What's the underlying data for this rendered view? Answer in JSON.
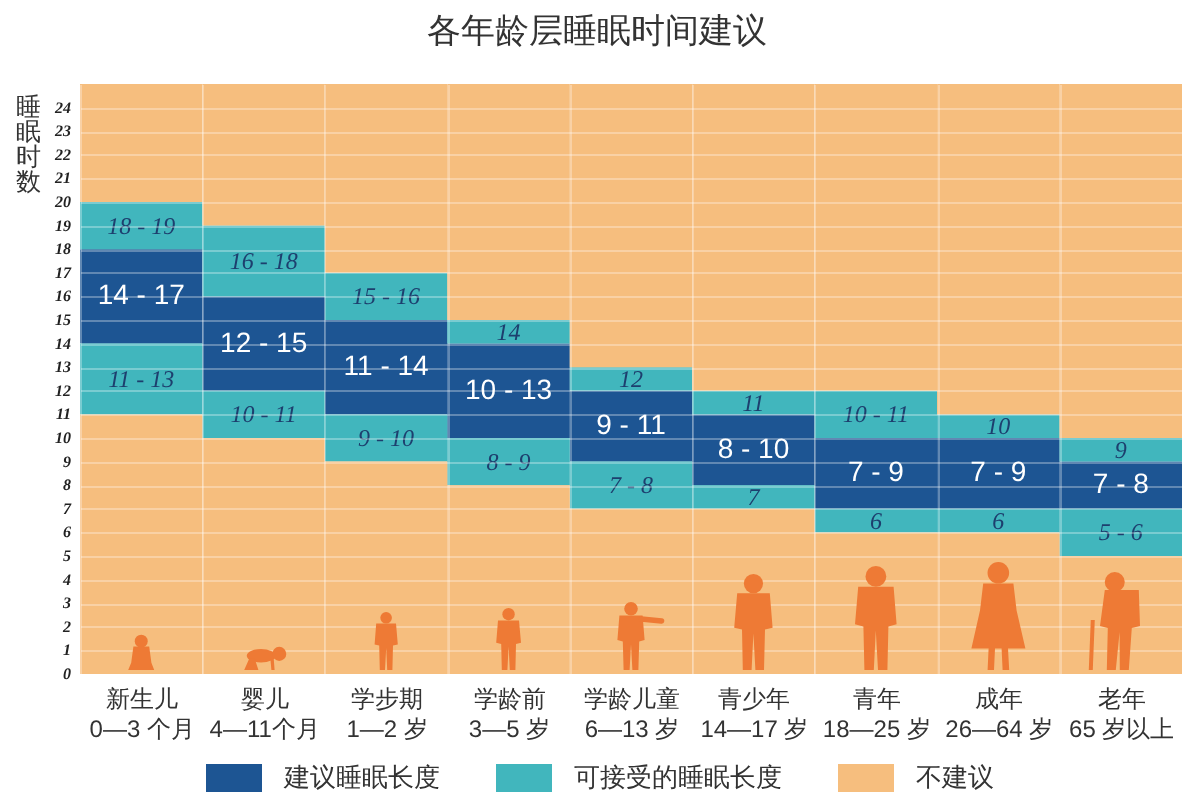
{
  "chart_data": {
    "type": "bar",
    "title": "各年龄层睡眠时间建议",
    "ylabel": "睡眠时数",
    "categories": [
      "新生儿\n0—3 个月",
      "婴儿\n4—11个月",
      "学步期\n1—2 岁",
      "学龄前\n3—5 岁",
      "学龄儿童\n6—13 岁",
      "青少年\n14—17 岁",
      "青年\n18—25 岁",
      "成年\n26—64 岁",
      "老年\n65 岁以上"
    ],
    "series": [
      {
        "name": "建议睡眠长度",
        "color": "#1d5593",
        "base": [
          14,
          12,
          11,
          10,
          9,
          8,
          7,
          7,
          7
        ],
        "values": [
          4,
          4,
          4,
          4,
          3,
          3,
          3,
          3,
          2
        ]
      },
      {
        "name": "可接受的睡眠长度",
        "color": "#41b6bd",
        "base": [
          18,
          16,
          15,
          14,
          12,
          11,
          10,
          10,
          9
        ],
        "values": [
          2,
          3,
          2,
          1,
          1,
          1,
          2,
          1,
          1
        ]
      },
      {
        "color": "#41b6bd",
        "base": [
          11,
          10,
          9,
          8,
          7,
          7,
          6,
          6,
          5
        ],
        "values": [
          3,
          2,
          2,
          2,
          2,
          1,
          1,
          1,
          2
        ]
      },
      {
        "name": "不建议",
        "color": "#f6be7e",
        "base": [
          0,
          0,
          0,
          0,
          0,
          0,
          0,
          0,
          0
        ],
        "values": [
          11,
          10,
          9,
          8,
          7,
          7,
          6,
          6,
          5
        ]
      },
      {
        "color": "#f6be7e",
        "base": [
          20,
          19,
          17,
          15,
          13,
          12,
          12,
          11,
          10
        ],
        "values": [
          5,
          6,
          8,
          10,
          12,
          13,
          13,
          14,
          15
        ]
      }
    ],
    "annotations": [
      {
        "text": "14 - 17",
        "x": "新生儿\n0—3 个月",
        "y": 18
      },
      {
        "text": "12 - 15",
        "x": "婴儿\n4—11个月",
        "y": 16
      },
      {
        "text": "11 - 14",
        "x": "学步期\n1—2 岁",
        "y": 15
      },
      {
        "text": "10 - 13",
        "x": "学龄前\n3—5 岁",
        "y": 14
      },
      {
        "text": "9 - 11",
        "x": "学龄儿童\n6—13 岁",
        "y": 12
      },
      {
        "text": "8 - 10",
        "x": "青少年\n14—17 岁",
        "y": 11
      },
      {
        "text": "7 - 9",
        "x": "青年\n18—25 岁",
        "y": 10
      },
      {
        "text": "7 - 9",
        "x": "成年\n26—64 岁",
        "y": 10
      },
      {
        "text": "7 - 8",
        "x": "老年\n65 岁以上",
        "y": 9
      },
      {
        "text": "18 - 19",
        "x": "新生儿\n0—3 个月",
        "y": 20
      },
      {
        "text": "16 - 18",
        "x": "婴儿\n4—11个月",
        "y": 19
      },
      {
        "text": "15 - 16",
        "x": "学步期\n1—2 岁",
        "y": 17
      },
      {
        "text": "14",
        "x": "学龄前\n3—5 岁",
        "y": 15
      },
      {
        "text": "12",
        "x": "学龄儿童\n6—13 岁",
        "y": 13
      },
      {
        "text": "11",
        "x": "青少年\n14—17 岁",
        "y": 12
      },
      {
        "text": "10 - 11",
        "x": "青年\n18—25 岁",
        "y": 12
      },
      {
        "text": "10",
        "x": "成年\n26—64 岁",
        "y": 11
      },
      {
        "text": "9",
        "x": "老年\n65 岁以上",
        "y": 10
      },
      {
        "text": "11 - 13",
        "x": "新生儿\n0—3 个月",
        "y": 14
      },
      {
        "text": "10 - 11",
        "x": "婴儿\n4—11个月",
        "y": 12
      },
      {
        "text": "9 - 10",
        "x": "学步期\n1—2 岁",
        "y": 11
      },
      {
        "text": "8 - 9",
        "x": "学龄前\n3—5 岁",
        "y": 10
      },
      {
        "text": "7 - 8",
        "x": "学龄儿童\n6—13 岁",
        "y": 9
      },
      {
        "text": "7",
        "x": "青少年\n14—17 岁",
        "y": 8
      },
      {
        "text": "6",
        "x": "青年\n18—25 岁",
        "y": 7
      },
      {
        "text": "6",
        "x": "成年\n26—64 岁",
        "y": 7
      },
      {
        "text": "5 - 6",
        "x": "老年\n65 岁以上",
        "y": 7
      }
    ],
    "ylim": [
      0,
      25
    ],
    "yticks": [
      0,
      1,
      2,
      3,
      4,
      5,
      6,
      7,
      8,
      9,
      10,
      11,
      12,
      13,
      14,
      15,
      16,
      17,
      18,
      19,
      20,
      21,
      22,
      23,
      24
    ],
    "grid": true,
    "legend": "bottom"
  }
}
